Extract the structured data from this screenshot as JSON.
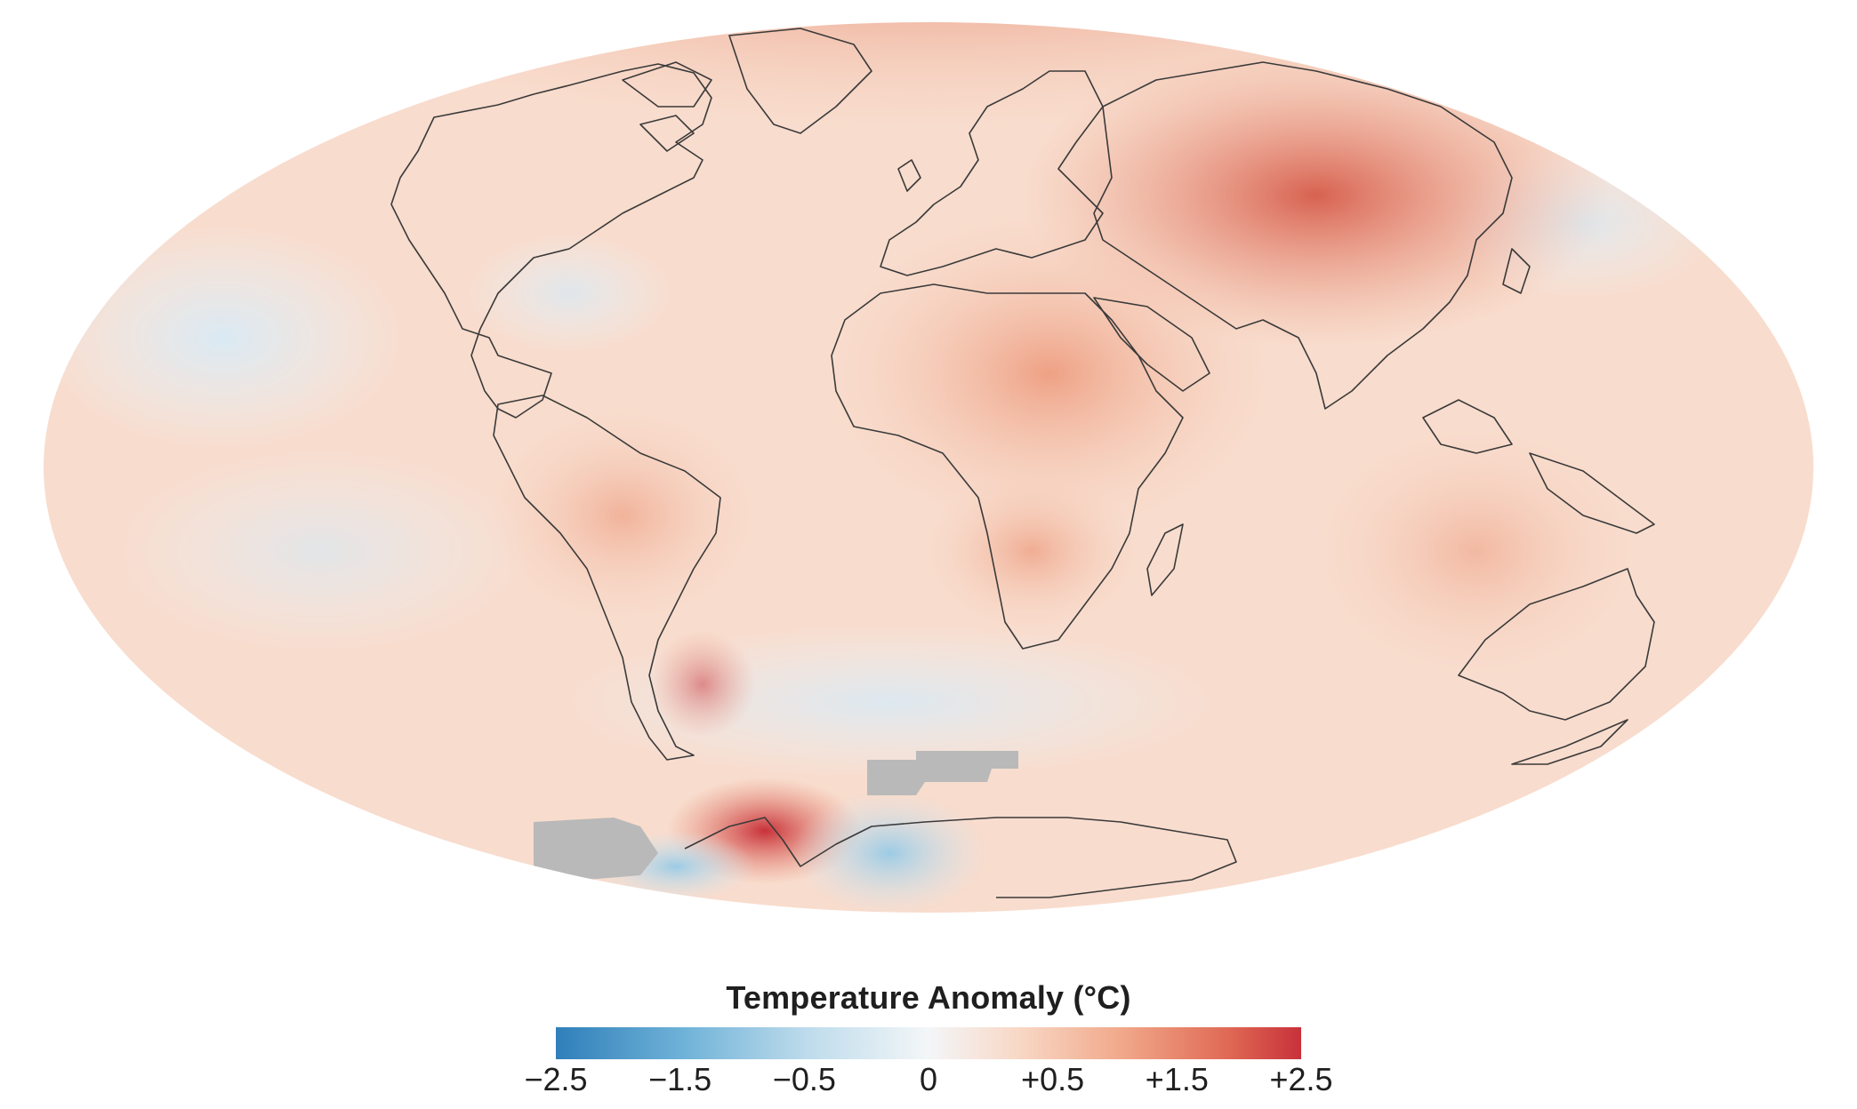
{
  "map": {
    "projection": "Mollweide",
    "no_data_color": "#b9b9b9",
    "coastline_color": "#3a3a3a",
    "palette": {
      "cold": "#2f7fba",
      "neutral": "#f3f6f8",
      "warm": "#c8313a"
    }
  },
  "legend": {
    "title": "Temperature Anomaly (°C)",
    "ticks": [
      "−2.5",
      "−1.5",
      "−0.5",
      "0",
      "+0.5",
      "+1.5",
      "+2.5"
    ],
    "range": [
      -2.5,
      2.5
    ]
  }
}
